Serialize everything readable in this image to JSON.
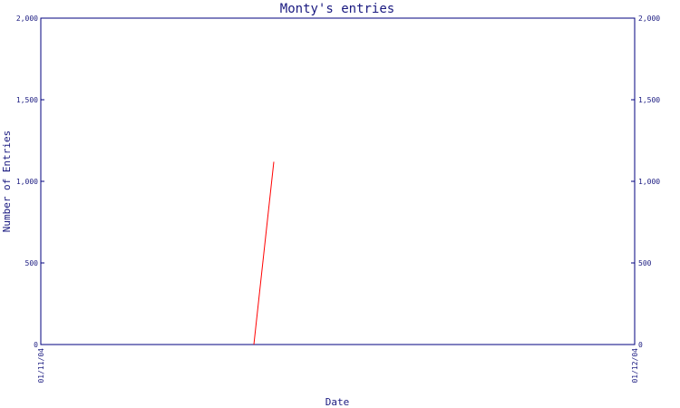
{
  "chart_data": {
    "type": "line",
    "title": "Monty's entries",
    "xlabel": "Date",
    "ylabel": "Number of Entries",
    "ylim": [
      0,
      2000
    ],
    "y_ticks": [
      0,
      500,
      1000,
      1500,
      2000
    ],
    "y_tick_labels": [
      "0",
      "500",
      "1,000",
      "1,500",
      "2,000"
    ],
    "x_ticks": [
      "01/11/04",
      "01/12/04"
    ],
    "series": [
      {
        "color": "#ff0000",
        "points": [
          {
            "x": "01/11/04",
            "y": 0
          },
          {
            "x": "01/12/04",
            "y": 1120
          }
        ]
      }
    ],
    "grid": false,
    "axis_color": "#00007f"
  }
}
